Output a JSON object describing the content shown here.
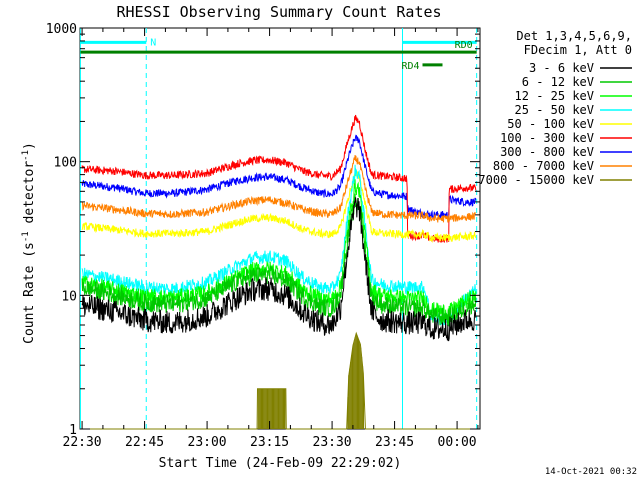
{
  "chart_data": {
    "type": "line",
    "title": "RHESSI Observing Summary Count Rates",
    "xlabel": "Start Time (24-Feb-09 22:29:02)",
    "ylabel": "Count Rate (s⁻¹ detector⁻¹)",
    "ylabel_base": "Count Rate (s",
    "ylabel_mid": " detector",
    "ylabel_end": ")",
    "ylabel_sup": "-1",
    "yscale": "log",
    "ylim": [
      1,
      1000
    ],
    "xlim": [
      -0.5,
      95.5
    ],
    "x_unit": "minutes after 22:30",
    "x_ticks": [
      {
        "x": 0,
        "label": "22:30"
      },
      {
        "x": 15,
        "label": "22:45"
      },
      {
        "x": 30,
        "label": "23:00"
      },
      {
        "x": 45,
        "label": "23:15"
      },
      {
        "x": 60,
        "label": "23:30"
      },
      {
        "x": 75,
        "label": "23:45"
      },
      {
        "x": 90,
        "label": "00:00"
      }
    ],
    "y_ticks": [
      {
        "y": 1,
        "label": "1"
      },
      {
        "y": 10,
        "label": "10"
      },
      {
        "y": 100,
        "label": "100"
      },
      {
        "y": 1000,
        "label": "1000"
      }
    ],
    "legend_header": [
      "Det 1,3,4,5,6,9,",
      "FDecim 1, Att 0"
    ],
    "legend_position": "top-right",
    "timestamp": "14-Oct-2021 00:32",
    "series": [
      {
        "name": "3 - 6 keV",
        "color": "#000000",
        "noise": 0.09,
        "points": [
          [
            0,
            8.5
          ],
          [
            8,
            7.5
          ],
          [
            15,
            6.5
          ],
          [
            22,
            6.2
          ],
          [
            30,
            7
          ],
          [
            37,
            9.5
          ],
          [
            41,
            11
          ],
          [
            45,
            11.2
          ],
          [
            49,
            10
          ],
          [
            53,
            7.5
          ],
          [
            57,
            6.2
          ],
          [
            60,
            6
          ],
          [
            62,
            8
          ],
          [
            64,
            25
          ],
          [
            65.5,
            47
          ],
          [
            66.5,
            45
          ],
          [
            68,
            18
          ],
          [
            69.5,
            7.5
          ],
          [
            72,
            6.5
          ],
          [
            78,
            6.2
          ],
          [
            82,
            6.2
          ],
          [
            84,
            5.6
          ],
          [
            88,
            5.6
          ],
          [
            92,
            6.5
          ],
          [
            94.5,
            6.6
          ]
        ]
      },
      {
        "name": "6 - 12 keV",
        "color": "#00c800",
        "noise": 0.07,
        "points": [
          [
            0,
            11.5
          ],
          [
            8,
            10
          ],
          [
            15,
            8.8
          ],
          [
            22,
            8.5
          ],
          [
            30,
            9.5
          ],
          [
            37,
            12.5
          ],
          [
            41,
            14
          ],
          [
            45,
            14.2
          ],
          [
            49,
            13
          ],
          [
            53,
            9.8
          ],
          [
            57,
            8.2
          ],
          [
            60,
            8
          ],
          [
            62,
            10
          ],
          [
            64,
            30
          ],
          [
            65.5,
            50
          ],
          [
            66.5,
            48
          ],
          [
            68,
            22
          ],
          [
            69.5,
            9.5
          ],
          [
            72,
            8.5
          ],
          [
            78,
            8
          ],
          [
            82,
            8
          ],
          [
            84,
            7
          ],
          [
            88,
            6.8
          ],
          [
            92,
            8
          ],
          [
            94.5,
            9
          ]
        ]
      },
      {
        "name": "12 - 25 keV",
        "color": "#00ff00",
        "noise": 0.06,
        "points": [
          [
            0,
            12.5
          ],
          [
            8,
            11
          ],
          [
            15,
            9.8
          ],
          [
            22,
            9.6
          ],
          [
            30,
            10.5
          ],
          [
            37,
            13.5
          ],
          [
            41,
            15.5
          ],
          [
            45,
            15.8
          ],
          [
            49,
            14.5
          ],
          [
            53,
            11
          ],
          [
            57,
            9.5
          ],
          [
            60,
            9.3
          ],
          [
            62,
            11.5
          ],
          [
            64,
            36
          ],
          [
            65.5,
            65
          ],
          [
            66.5,
            62
          ],
          [
            68,
            26
          ],
          [
            69.5,
            11
          ],
          [
            72,
            10
          ],
          [
            78,
            9.5
          ],
          [
            82,
            9.5
          ],
          [
            84,
            7.8
          ],
          [
            88,
            7.5
          ],
          [
            92,
            9
          ],
          [
            94.5,
            10
          ]
        ]
      },
      {
        "name": "25 - 50 keV",
        "color": "#00ffff",
        "noise": 0.05,
        "points": [
          [
            0,
            14.5
          ],
          [
            8,
            13
          ],
          [
            15,
            11.5
          ],
          [
            22,
            11.2
          ],
          [
            30,
            12.5
          ],
          [
            37,
            16.5
          ],
          [
            41,
            19
          ],
          [
            45,
            19.5
          ],
          [
            49,
            18
          ],
          [
            53,
            13.5
          ],
          [
            57,
            11.5
          ],
          [
            60,
            11.2
          ],
          [
            62,
            14
          ],
          [
            64,
            45
          ],
          [
            65.5,
            85
          ],
          [
            66.5,
            80
          ],
          [
            68,
            32
          ],
          [
            69.5,
            13
          ],
          [
            72,
            12
          ],
          [
            78,
            11.5
          ],
          [
            82,
            11.5
          ],
          [
            84,
            6.8
          ],
          [
            88,
            6.5
          ],
          [
            92,
            9.5
          ],
          [
            94.5,
            11
          ]
        ]
      },
      {
        "name": "50 - 100 keV",
        "color": "#ffff00",
        "noise": 0.03,
        "points": [
          [
            0,
            33
          ],
          [
            8,
            31
          ],
          [
            15,
            29
          ],
          [
            22,
            29
          ],
          [
            30,
            30
          ],
          [
            37,
            35
          ],
          [
            41,
            37.5
          ],
          [
            45,
            38
          ],
          [
            49,
            36
          ],
          [
            53,
            31
          ],
          [
            57,
            29
          ],
          [
            60,
            28.5
          ],
          [
            62,
            32
          ],
          [
            64,
            55
          ],
          [
            65.5,
            80
          ],
          [
            66.5,
            78
          ],
          [
            68,
            48
          ],
          [
            69.5,
            30
          ],
          [
            72,
            29
          ],
          [
            78,
            28.5
          ],
          [
            82,
            28.5
          ],
          [
            84,
            27
          ],
          [
            88,
            27
          ],
          [
            92,
            27.5
          ],
          [
            94.5,
            28
          ]
        ]
      },
      {
        "name": "100 - 300 keV",
        "color": "#ff0000",
        "noise": 0.03,
        "points": [
          [
            0,
            88
          ],
          [
            8,
            85
          ],
          [
            15,
            79
          ],
          [
            22,
            79
          ],
          [
            30,
            82
          ],
          [
            37,
            96
          ],
          [
            41,
            102
          ],
          [
            45,
            103
          ],
          [
            49,
            98
          ],
          [
            53,
            85
          ],
          [
            57,
            79
          ],
          [
            60,
            78
          ],
          [
            62,
            88
          ],
          [
            64,
            150
          ],
          [
            65.5,
            210
          ],
          [
            66.5,
            200
          ],
          [
            68,
            120
          ],
          [
            69.5,
            80
          ],
          [
            72,
            78
          ],
          [
            78,
            75
          ],
          [
            78.1,
            28
          ],
          [
            82,
            28
          ],
          [
            84,
            26.5
          ],
          [
            88,
            26.5
          ],
          [
            88.1,
            62
          ],
          [
            92,
            64
          ],
          [
            94.5,
            63
          ]
        ]
      },
      {
        "name": "300 - 800 keV",
        "color": "#0000ff",
        "noise": 0.03,
        "points": [
          [
            0,
            68
          ],
          [
            8,
            64
          ],
          [
            15,
            58
          ],
          [
            22,
            58
          ],
          [
            30,
            62
          ],
          [
            37,
            72
          ],
          [
            41,
            76
          ],
          [
            45,
            77
          ],
          [
            49,
            73
          ],
          [
            53,
            64
          ],
          [
            57,
            58
          ],
          [
            60,
            57
          ],
          [
            62,
            65
          ],
          [
            64,
            110
          ],
          [
            65.5,
            150
          ],
          [
            66.5,
            145
          ],
          [
            68,
            90
          ],
          [
            69.5,
            60
          ],
          [
            72,
            57
          ],
          [
            78,
            55
          ],
          [
            78.1,
            45
          ],
          [
            80,
            42
          ],
          [
            84,
            40
          ],
          [
            88,
            40
          ],
          [
            88.1,
            52
          ],
          [
            92,
            50
          ],
          [
            94.5,
            50
          ]
        ]
      },
      {
        "name": "800 - 7000 keV",
        "color": "#ff8000",
        "noise": 0.03,
        "points": [
          [
            0,
            47
          ],
          [
            8,
            44
          ],
          [
            15,
            41
          ],
          [
            22,
            40.5
          ],
          [
            30,
            42
          ],
          [
            37,
            48
          ],
          [
            41,
            51
          ],
          [
            45,
            52
          ],
          [
            49,
            49
          ],
          [
            53,
            44
          ],
          [
            57,
            41
          ],
          [
            60,
            40.5
          ],
          [
            62,
            45
          ],
          [
            64,
            75
          ],
          [
            65.5,
            105
          ],
          [
            66.5,
            100
          ],
          [
            68,
            62
          ],
          [
            69.5,
            42
          ],
          [
            72,
            40.5
          ],
          [
            78,
            39.5
          ],
          [
            82,
            39.5
          ],
          [
            84,
            37.5
          ],
          [
            88,
            37.5
          ],
          [
            92,
            38.5
          ],
          [
            94.5,
            39
          ]
        ]
      },
      {
        "name": "7000 - 15000 keV",
        "color": "#808000",
        "noise": 0,
        "points": [
          [
            0,
            1
          ],
          [
            42,
            1
          ],
          [
            42.1,
            2
          ],
          [
            48.9,
            2
          ],
          [
            49,
            1
          ],
          [
            63.5,
            1
          ],
          [
            64,
            2.5
          ],
          [
            65,
            4.2
          ],
          [
            65.8,
            5.2
          ],
          [
            66.8,
            4.3
          ],
          [
            67.5,
            2.6
          ],
          [
            68,
            1
          ],
          [
            95.5,
            1
          ]
        ]
      }
    ],
    "annotations": [
      {
        "type": "dashed-vline",
        "x": 15.4,
        "color": "#00ffff"
      },
      {
        "type": "dashed-vline",
        "x": 94.7,
        "color": "#00ffff"
      },
      {
        "type": "solid-vline",
        "x": -0.4,
        "color": "#00ffff"
      },
      {
        "type": "solid-vline",
        "x": 76.9,
        "color": "#00ffff"
      },
      {
        "type": "hbar",
        "label": "N",
        "x0": -0.4,
        "x1": 15.4,
        "y": 780,
        "color": "#00ffff"
      },
      {
        "type": "hbar",
        "label": "",
        "x0": 76.9,
        "x1": 94.7,
        "y": 780,
        "color": "#00ffff"
      },
      {
        "type": "hbar",
        "label": "RD0",
        "x0": -0.4,
        "x1": 94.7,
        "y": 660,
        "color": "#008000"
      },
      {
        "type": "hbar",
        "label": "RD4",
        "x0": 81.7,
        "x1": 86.5,
        "y": 530,
        "color": "#008000"
      }
    ]
  }
}
